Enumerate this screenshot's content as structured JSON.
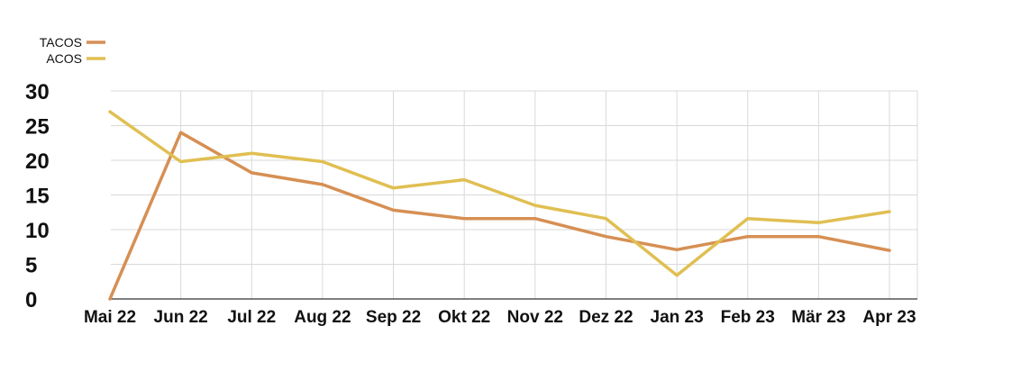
{
  "chart_data": {
    "type": "line",
    "title": "",
    "xlabel": "",
    "ylabel": "",
    "categories": [
      "Mai 22",
      "Jun 22",
      "Jul 22",
      "Aug 22",
      "Sep 22",
      "Okt 22",
      "Nov 22",
      "Dez 22",
      "Jan 23",
      "Feb 23",
      "Mär 23",
      "Apr 23"
    ],
    "y_ticks": [
      0,
      5,
      10,
      15,
      20,
      25,
      30
    ],
    "ylim": [
      0,
      30
    ],
    "grid": true,
    "legend_position": "top-left",
    "series": [
      {
        "name": "TACOS",
        "color": "#D68F53",
        "values": [
          0,
          24,
          18.2,
          16.5,
          12.8,
          11.6,
          11.6,
          9.0,
          7.1,
          9.0,
          9.0,
          7.0
        ]
      },
      {
        "name": "ACOS",
        "color": "#E0BF52",
        "values": [
          27,
          19.8,
          21,
          19.8,
          16,
          17.2,
          13.5,
          11.6,
          3.4,
          11.6,
          11,
          12.6
        ]
      }
    ]
  }
}
